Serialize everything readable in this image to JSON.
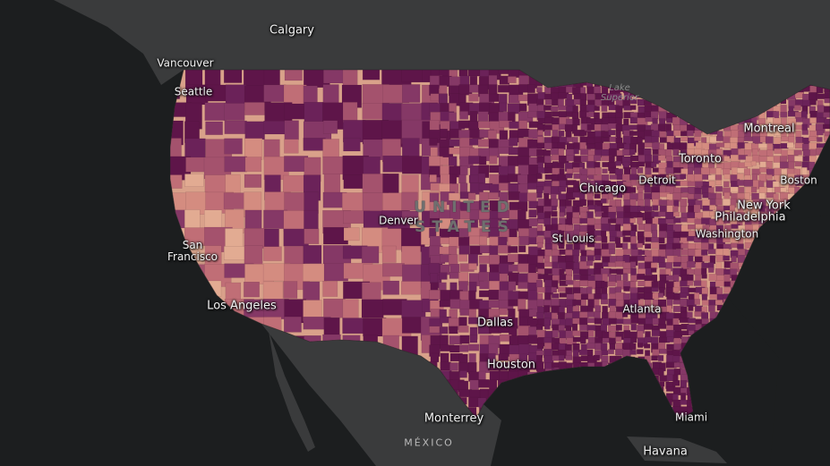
{
  "map": {
    "colors": {
      "ocean": "#1c1e1f",
      "land": "#3a3b3c",
      "lowest": "#ede1c0",
      "highest": "#5e1549"
    },
    "labels": {
      "calgary": "Calgary",
      "vancouver": "Vancouver",
      "seattle": "Seattle",
      "lake_superior_1": "Lake",
      "lake_superior_2": "Superior",
      "montreal": "Montreal",
      "toronto": "Toronto",
      "boston": "Boston",
      "new_york_1": "New York",
      "philadelphia": "Philadelphia",
      "washington": "Washington",
      "chicago": "Chicago",
      "detroit": "Detroit",
      "united_1": "UNITED",
      "united_2": "STATES",
      "denver": "Denver",
      "san_francisco_1": "San",
      "san_francisco_2": "Francisco",
      "los_angeles": "Los Angeles",
      "st_louis": "St Louis",
      "dallas": "Dallas",
      "atlanta": "Atlanta",
      "houston": "Houston",
      "monterrey": "Monterrey",
      "miami": "Miami",
      "mexico": "MÉXICO",
      "havana": "Havana"
    }
  }
}
